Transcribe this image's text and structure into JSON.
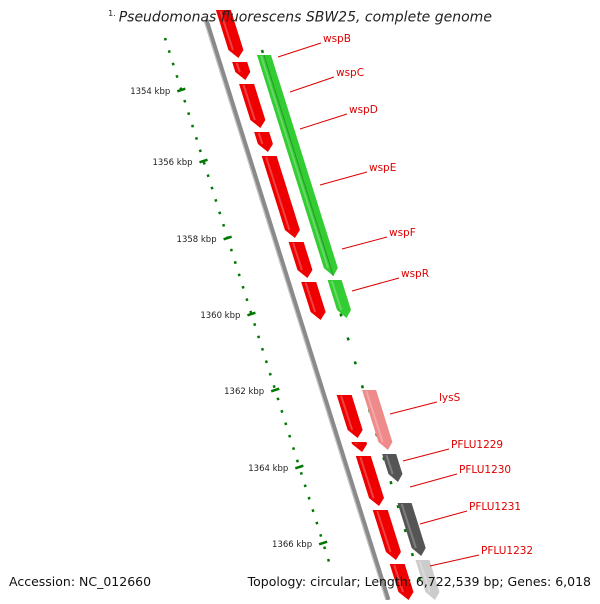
{
  "title": {
    "number": "1.",
    "organism": "Pseudomonas fluorescens SBW25, complete genome"
  },
  "footer": {
    "accession": "Accession: NC_012660",
    "info": "Topology: circular; Length: 6,722,539 bp; Genes: 6,018"
  },
  "scale": {
    "ticks": [
      "1354 kbp",
      "1356 kbp",
      "1358 kbp",
      "1360 kbp",
      "1362 kbp",
      "1364 kbp",
      "1366 kbp"
    ]
  },
  "genes": [
    "wspB",
    "wspC",
    "wspD",
    "wspE",
    "wspF",
    "wspR",
    "lysS",
    "PFLU1229",
    "PFLU1230",
    "PFLU1231",
    "PFLU1232"
  ],
  "colors": {
    "backbone": "#8a8a8a",
    "cds": "#ee0000",
    "highlight": "#33cc33",
    "homolog_light": "#ef8a8a",
    "homolog_dark": "#555555",
    "homolog_pale": "#cccccc",
    "label": "#dd0000",
    "ruler": "#007700"
  }
}
